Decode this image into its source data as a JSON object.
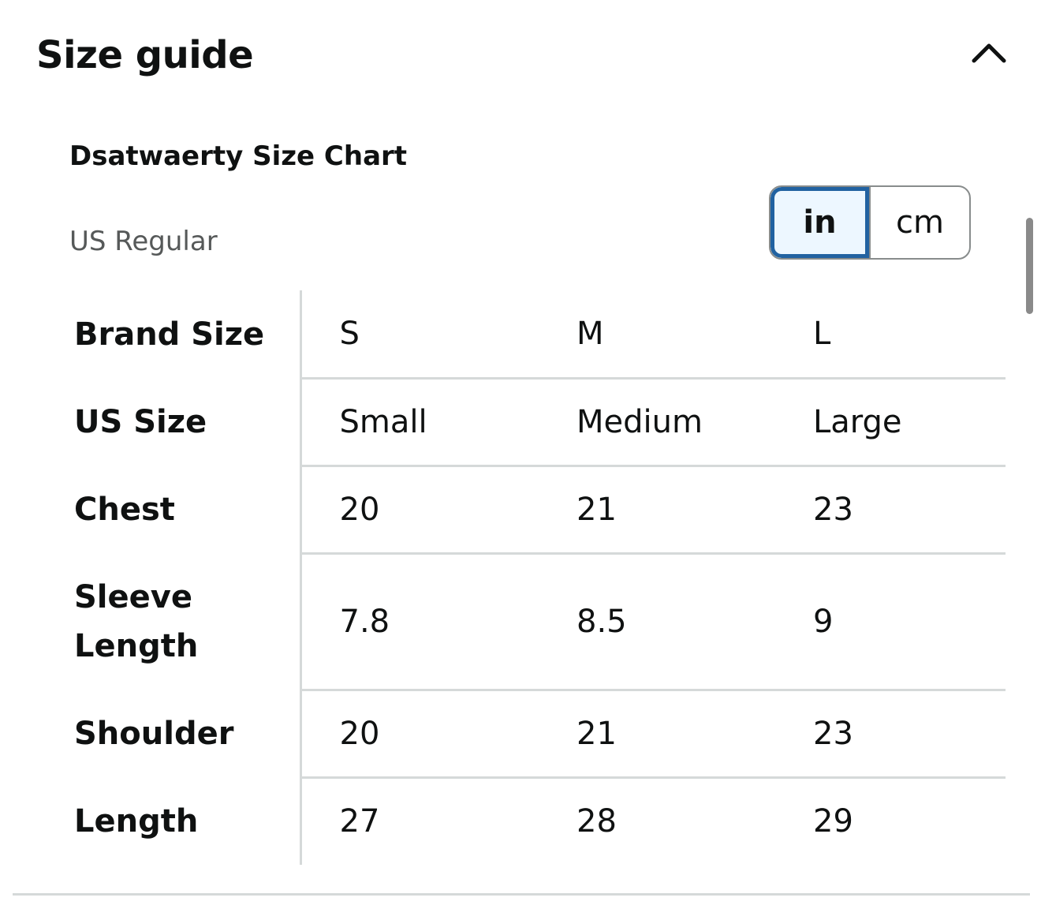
{
  "header": {
    "title": "Size guide"
  },
  "chart": {
    "title": "Dsatwaerty Size Chart",
    "region": "US Regular"
  },
  "unit_toggle": {
    "selected": "in",
    "options": [
      "in",
      "cm"
    ]
  },
  "table": {
    "rows": [
      {
        "label": "Brand Size",
        "values": [
          "S",
          "M",
          "L"
        ],
        "height": 111
      },
      {
        "label": "US Size",
        "values": [
          "Small",
          "Medium",
          "Large"
        ],
        "height": 111
      },
      {
        "label": "Chest",
        "values": [
          "20",
          "21",
          "23"
        ],
        "height": 111
      },
      {
        "label": "Sleeve Length",
        "values": [
          "7.8",
          "8.5",
          "9"
        ],
        "height": 173
      },
      {
        "label": "Shoulder",
        "values": [
          "20",
          "21",
          "23"
        ],
        "height": 111
      },
      {
        "label": "Length",
        "values": [
          "27",
          "28",
          "29"
        ],
        "height": 111
      }
    ]
  },
  "icons": {
    "collapse": "chevron-up-icon"
  }
}
